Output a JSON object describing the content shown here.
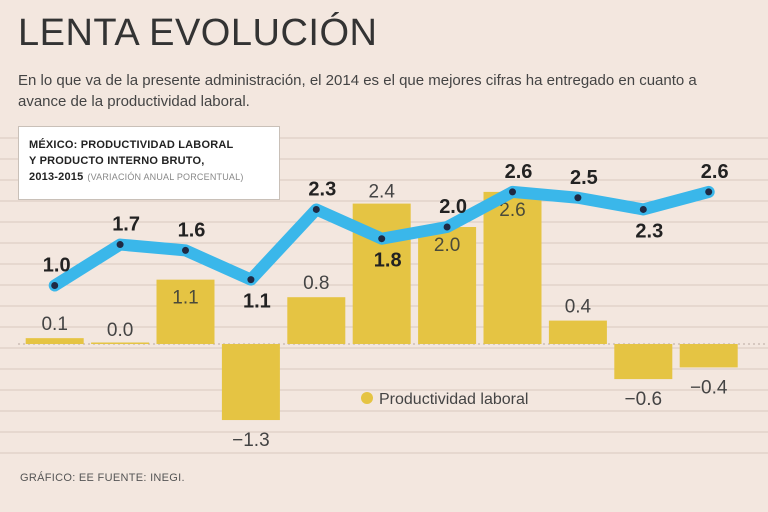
{
  "title": "LENTA EVOLUCIÓN",
  "subtitle": "En lo que va de la presente administración, el 2014 es el que mejores cifras ha entregado en cuanto a avance de la productividad laboral.",
  "box": {
    "line1": "MÉXICO: PRODUCTIVIDAD LABORAL",
    "line2": "Y PRODUCTO INTERNO BRUTO,",
    "line3": "2013-2015",
    "unit": "(VARIACIÓN ANUAL PORCENTUAL)"
  },
  "footer": "GRÁFICO: EE  FUENTE: INEGI.",
  "colors": {
    "bar": "#e5c443",
    "line": "#3ab7ea",
    "background": "#f3e7df",
    "grid": "#d9c9bf"
  },
  "chart_data": {
    "type": "bar",
    "title": "México: Productividad laboral y Producto Interno Bruto, 2013-2015",
    "ylabel": "Variación anual porcentual",
    "ylim": [
      -1.6,
      2.9
    ],
    "grid": true,
    "legend": "bottom-center",
    "series": [
      {
        "name": "Productividad laboral",
        "type": "bar",
        "values": [
          0.1,
          0.0,
          1.1,
          -1.3,
          0.8,
          2.4,
          2.0,
          2.6,
          0.4,
          -0.6,
          -0.4
        ],
        "labels": [
          "0.1",
          "0.0",
          "1.1",
          "−1.3",
          "0.8",
          "2.4",
          "2.0",
          "2.6",
          "0.4",
          "−0.6",
          "−0.4"
        ]
      },
      {
        "name": "Producto Interno Bruto",
        "type": "line",
        "values": [
          1.0,
          1.7,
          1.6,
          1.1,
          2.3,
          1.8,
          2.0,
          2.6,
          2.5,
          2.3,
          2.6
        ],
        "labels": [
          "1.0",
          "1.7",
          "1.6",
          "1.1",
          "2.3",
          "1.8",
          "2.0",
          "2.6",
          "2.5",
          "2.3",
          "2.6"
        ]
      }
    ]
  }
}
